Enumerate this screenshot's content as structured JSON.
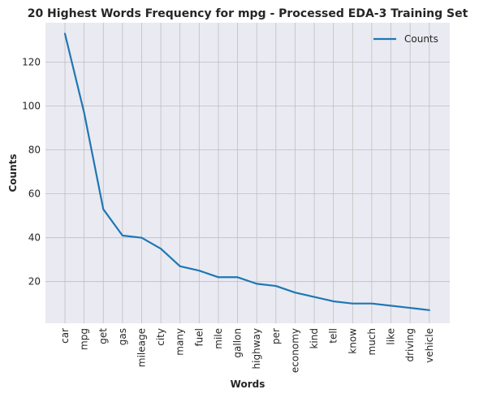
{
  "chart_data": {
    "type": "line",
    "title": "20 Highest Words Frequency for mpg - Processed EDA-3 Training Set",
    "xlabel": "Words",
    "ylabel": "Counts",
    "categories": [
      "car",
      "mpg",
      "get",
      "gas",
      "mileage",
      "city",
      "many",
      "fuel",
      "mile",
      "gallon",
      "highway",
      "per",
      "economy",
      "kind",
      "tell",
      "know",
      "much",
      "like",
      "driving",
      "vehicle"
    ],
    "series": [
      {
        "name": "Counts",
        "values": [
          133,
          97,
          53,
          41,
          40,
          35,
          27,
          25,
          22,
          22,
          19,
          18,
          15,
          13,
          11,
          10,
          10,
          9,
          8,
          7
        ]
      }
    ],
    "ylim": [
      1,
      138
    ],
    "yticks": [
      20,
      40,
      60,
      80,
      100,
      120
    ],
    "grid": true,
    "legend": "top-right",
    "colors": {
      "line": "#1f77b4",
      "plot_bg": "#eaeaf2",
      "grid": "#bfbfbf"
    }
  }
}
